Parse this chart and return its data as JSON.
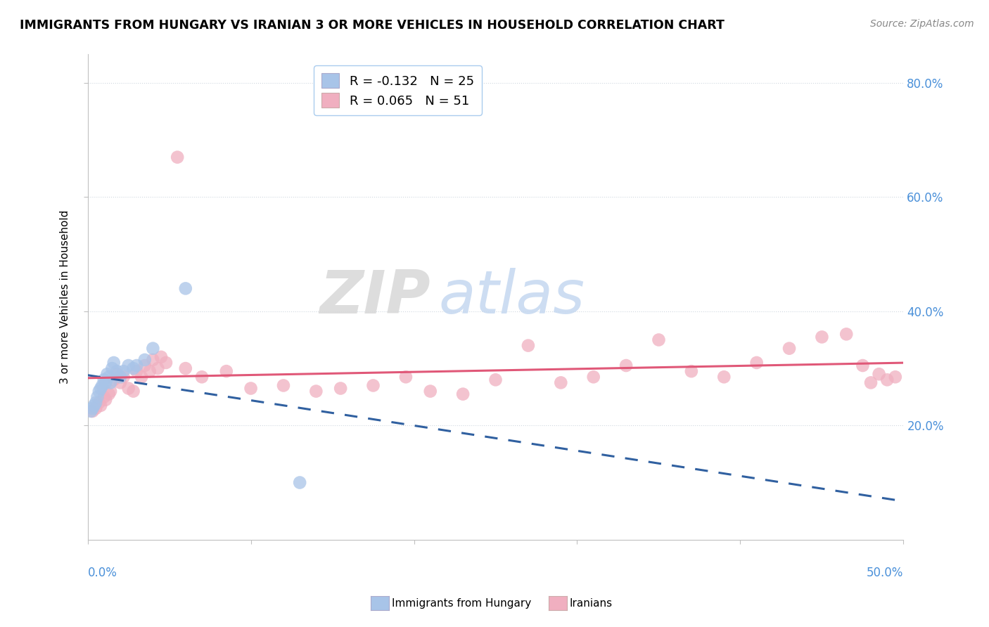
{
  "title": "IMMIGRANTS FROM HUNGARY VS IRANIAN 3 OR MORE VEHICLES IN HOUSEHOLD CORRELATION CHART",
  "source": "Source: ZipAtlas.com",
  "ylabel": "3 or more Vehicles in Household",
  "xlim": [
    0.0,
    0.5
  ],
  "ylim": [
    0.0,
    0.85
  ],
  "legend_entry1": "R = -0.132   N = 25",
  "legend_entry2": "R = 0.065   N = 51",
  "legend_label1": "Immigrants from Hungary",
  "legend_label2": "Iranians",
  "watermark_zip": "ZIP",
  "watermark_atlas": "atlas",
  "blue_color": "#a8c4e8",
  "pink_color": "#f0afc0",
  "blue_line_color": "#3060a0",
  "pink_line_color": "#e05878",
  "hungary_x": [
    0.002,
    0.003,
    0.004,
    0.005,
    0.006,
    0.007,
    0.008,
    0.009,
    0.01,
    0.011,
    0.012,
    0.013,
    0.014,
    0.015,
    0.016,
    0.018,
    0.02,
    0.022,
    0.025,
    0.028,
    0.03,
    0.035,
    0.04,
    0.06,
    0.13
  ],
  "hungary_y": [
    0.225,
    0.23,
    0.235,
    0.24,
    0.25,
    0.26,
    0.265,
    0.27,
    0.28,
    0.275,
    0.29,
    0.285,
    0.275,
    0.3,
    0.31,
    0.295,
    0.285,
    0.295,
    0.305,
    0.3,
    0.305,
    0.315,
    0.335,
    0.44,
    0.1
  ],
  "iran_x": [
    0.003,
    0.005,
    0.007,
    0.008,
    0.01,
    0.011,
    0.013,
    0.014,
    0.016,
    0.018,
    0.02,
    0.022,
    0.025,
    0.028,
    0.03,
    0.033,
    0.035,
    0.038,
    0.04,
    0.043,
    0.045,
    0.048,
    0.055,
    0.06,
    0.07,
    0.085,
    0.1,
    0.12,
    0.14,
    0.155,
    0.175,
    0.195,
    0.21,
    0.23,
    0.25,
    0.27,
    0.29,
    0.31,
    0.33,
    0.35,
    0.37,
    0.39,
    0.41,
    0.43,
    0.45,
    0.465,
    0.475,
    0.48,
    0.485,
    0.49,
    0.495
  ],
  "iran_y": [
    0.225,
    0.23,
    0.24,
    0.235,
    0.25,
    0.245,
    0.255,
    0.26,
    0.28,
    0.29,
    0.275,
    0.285,
    0.265,
    0.26,
    0.295,
    0.285,
    0.305,
    0.295,
    0.315,
    0.3,
    0.32,
    0.31,
    0.67,
    0.3,
    0.285,
    0.295,
    0.265,
    0.27,
    0.26,
    0.265,
    0.27,
    0.285,
    0.26,
    0.255,
    0.28,
    0.34,
    0.275,
    0.285,
    0.305,
    0.35,
    0.295,
    0.285,
    0.31,
    0.335,
    0.355,
    0.36,
    0.305,
    0.275,
    0.29,
    0.28,
    0.285
  ]
}
